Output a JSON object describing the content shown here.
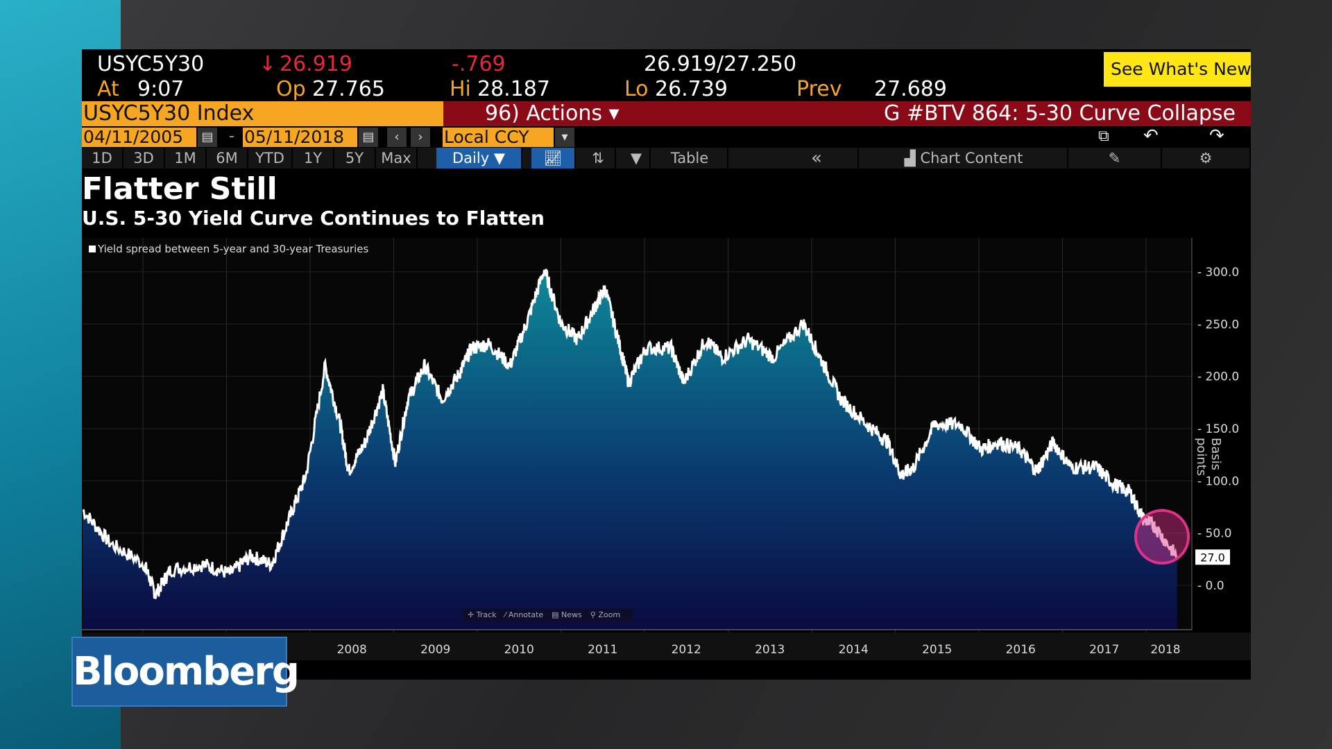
{
  "header": {
    "ticker": "USYC5Y30",
    "arrow": "↓",
    "last": "26.919",
    "change": "-.769",
    "bidask": "26.919/27.250",
    "at_label": "At",
    "at": "9:07",
    "op_label": "Op",
    "op": "27.765",
    "hi_label": "Hi",
    "hi": "28.187",
    "lo_label": "Lo",
    "lo": "26.739",
    "prev_label": "Prev",
    "prev": "27.689"
  },
  "popup": {
    "text": "See What's New in G",
    "close": "×"
  },
  "security": "USYC5Y30 Index",
  "actions": "96) Actions ▾",
  "story": "G #BTV 864: 5-30 Curve Collapse",
  "dates": {
    "start": "04/11/2005",
    "end": "05/11/2018",
    "currency": "Local CCY"
  },
  "toolbar": {
    "periods": [
      "1D",
      "3D",
      "1M",
      "6M",
      "YTD",
      "1Y",
      "5Y",
      "Max"
    ],
    "frequency": "Daily ▼",
    "table": "Table",
    "collapse": "«",
    "chart_content": "Chart Content"
  },
  "title": "Flatter Still",
  "subtitle": "U.S. 5-30 Yield Curve Continues to Flatten",
  "tools": [
    "✛ Track",
    "⁄ Annotate",
    "▤ News",
    "⚲ Zoom"
  ],
  "logo": "Bloomberg",
  "colors": {
    "orange": "#f6a623",
    "red_bar": "#8a0b17",
    "highlight": "#e0308a"
  },
  "chart_data": {
    "type": "area",
    "title": "Flatter Still",
    "subtitle": "U.S. 5-30 Yield Curve Continues to Flatten",
    "legend": "Yield spread between 5-year and 30-year Treasuries",
    "ylabel": "Basis points",
    "ylim": [
      -20,
      320
    ],
    "yticks": [
      "300.0",
      "250.0",
      "200.0",
      "150.0",
      "100.0",
      "50.0",
      "0.0"
    ],
    "xticks": [
      "2008",
      "2009",
      "2010",
      "2011",
      "2012",
      "2013",
      "2014",
      "2015",
      "2016",
      "2017",
      "2018"
    ],
    "last_value": "27.0",
    "series": [
      {
        "name": "Yield spread",
        "x": [
          2005.28,
          2005.61,
          2006.02,
          2006.15,
          2006.33,
          2006.73,
          2007.04,
          2007.29,
          2007.54,
          2007.75,
          2007.95,
          2008.18,
          2008.36,
          2008.46,
          2008.66,
          2008.87,
          2009.02,
          2009.17,
          2009.37,
          2009.58,
          2009.78,
          2009.93,
          2010.14,
          2010.39,
          2010.59,
          2010.8,
          2011.0,
          2011.2,
          2011.41,
          2011.53,
          2011.71,
          2011.81,
          2012.02,
          2012.32,
          2012.47,
          2012.73,
          2012.93,
          2013.24,
          2013.54,
          2013.9,
          2014.1,
          2014.35,
          2014.66,
          2014.91,
          2015.07,
          2015.22,
          2015.47,
          2015.78,
          2016.03,
          2016.23,
          2016.49,
          2016.69,
          2016.89,
          2017.1,
          2017.4,
          2017.61,
          2017.81,
          2017.96,
          2018.11,
          2018.37
        ],
        "y": [
          72,
          40,
          20,
          -9,
          15,
          20,
          11,
          28,
          20,
          64,
          105,
          210,
          154,
          109,
          137,
          186,
          117,
          178,
          210,
          178,
          202,
          227,
          231,
          210,
          251,
          302,
          251,
          235,
          267,
          284,
          227,
          194,
          227,
          227,
          194,
          235,
          218,
          235,
          218,
          251,
          218,
          178,
          154,
          137,
          105,
          113,
          154,
          154,
          130,
          137,
          130,
          109,
          137,
          113,
          113,
          97,
          89,
          64,
          56,
          27
        ]
      }
    ]
  }
}
